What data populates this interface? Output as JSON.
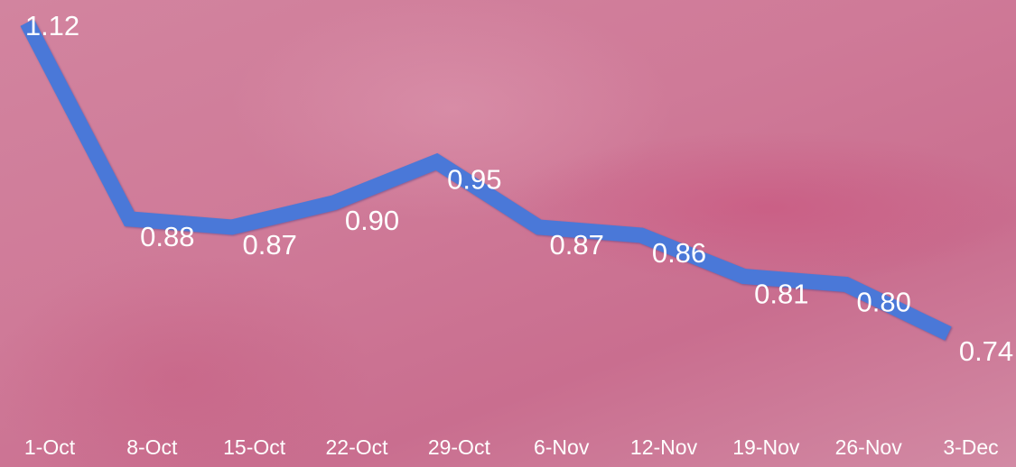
{
  "chart_data": {
    "type": "line",
    "categories": [
      "1-Oct",
      "8-Oct",
      "15-Oct",
      "22-Oct",
      "29-Oct",
      "6-Nov",
      "12-Nov",
      "19-Nov",
      "26-Nov",
      "3-Dec"
    ],
    "values": [
      1.12,
      0.88,
      0.87,
      0.9,
      0.95,
      0.87,
      0.86,
      0.81,
      0.8,
      0.74
    ],
    "value_labels": [
      "1.12",
      "0.88",
      "0.87",
      "0.90",
      "0.95",
      "0.87",
      "0.86",
      "0.81",
      "0.80",
      "0.74"
    ],
    "color": "#4a78d8"
  }
}
